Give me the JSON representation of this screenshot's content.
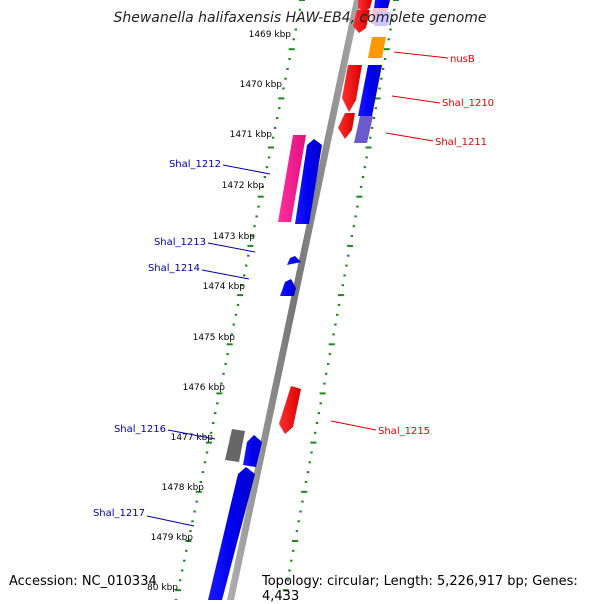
{
  "title": "Shewanella halifaxensis HAW-EB4, complete genome",
  "footer": {
    "accession": "Accession: NC_010334",
    "summary": "Topology: circular; Length: 5,226,917 bp; Genes: 4,433"
  },
  "kbp_ticks": [
    "1469 kbp",
    "1470 kbp",
    "1471 kbp",
    "1472 kbp",
    "1473 kbp",
    "1474 kbp",
    "1475 kbp",
    "1476 kbp",
    "1477 kbp",
    "1478 kbp",
    "1479 kbp",
    "80 kbp"
  ],
  "gene_labels": [
    {
      "text": "nusB",
      "strand": "forward"
    },
    {
      "text": "Shal_1210",
      "strand": "forward"
    },
    {
      "text": "Shal_1211",
      "strand": "forward"
    },
    {
      "text": "Shal_1212",
      "strand": "reverse"
    },
    {
      "text": "Shal_1213",
      "strand": "reverse"
    },
    {
      "text": "Shal_1214",
      "strand": "reverse"
    },
    {
      "text": "Shal_1215",
      "strand": "forward"
    },
    {
      "text": "Shal_1216",
      "strand": "reverse"
    },
    {
      "text": "Shal_1217",
      "strand": "reverse"
    }
  ],
  "colors": {
    "forward_label": "#e00000",
    "reverse_label": "#0000b0",
    "tick": "#1a8a1a",
    "backbone": "#8c8c8c",
    "gene_blue": "#0000ff",
    "gene_red": "#ff0000",
    "gene_pink": "#ff1493",
    "gene_orange": "#ff9900",
    "gene_purple": "#6a5acd",
    "gene_gray": "#666666"
  }
}
